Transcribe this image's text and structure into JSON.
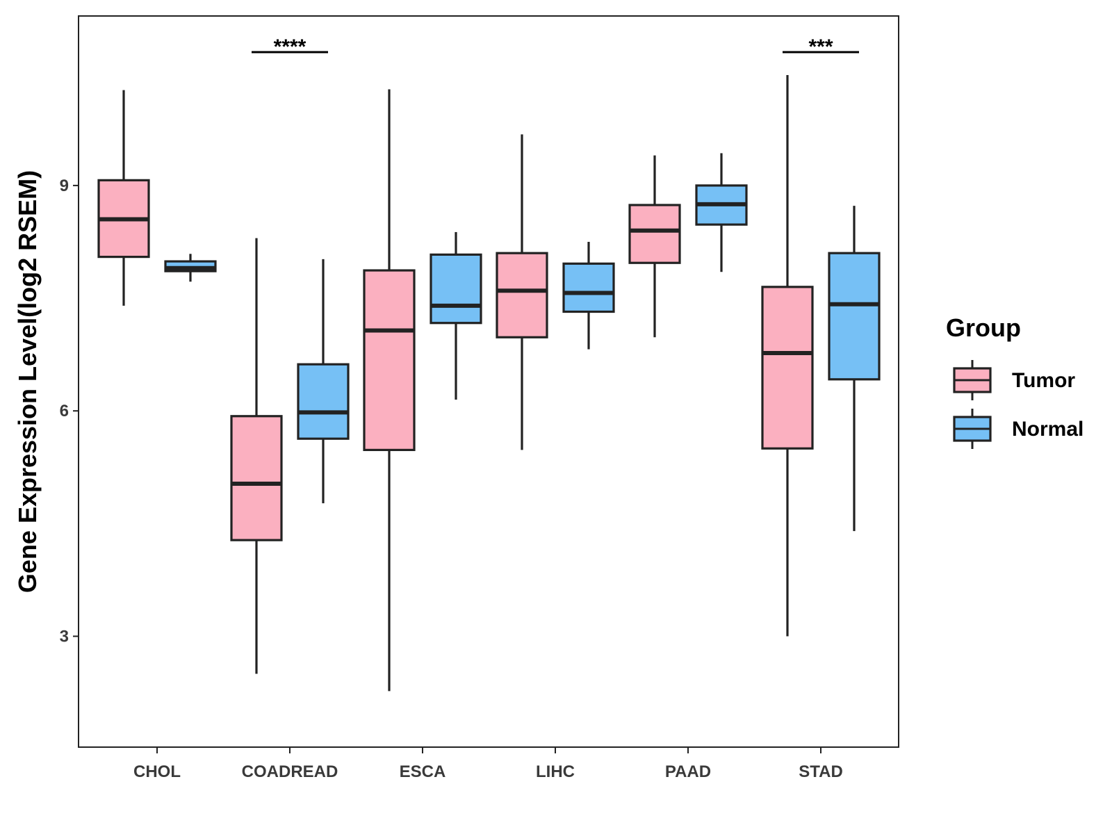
{
  "chart_data": {
    "type": "boxplot",
    "title": "",
    "xlabel": "",
    "ylabel": "Gene Expression Level(log2 RSEM)",
    "ylim": [
      1.5,
      11.25
    ],
    "yticks": [
      3,
      6,
      9
    ],
    "categories": [
      "CHOL",
      "COADREAD",
      "ESCA",
      "LIHC",
      "PAAD",
      "STAD"
    ],
    "legend": {
      "title": "Group",
      "position": "right"
    },
    "series": [
      {
        "name": "Tumor",
        "color": "#FBB0C0",
        "boxes": [
          {
            "category": "CHOL",
            "min": 7.4,
            "q1": 8.05,
            "median": 8.55,
            "q3": 9.07,
            "max": 10.27
          },
          {
            "category": "COADREAD",
            "min": 2.5,
            "q1": 4.28,
            "median": 5.03,
            "q3": 5.93,
            "max": 8.3
          },
          {
            "category": "ESCA",
            "min": 2.27,
            "q1": 5.48,
            "median": 7.07,
            "q3": 7.87,
            "max": 10.28
          },
          {
            "category": "LIHC",
            "min": 5.48,
            "q1": 6.98,
            "median": 7.6,
            "q3": 8.1,
            "max": 9.68
          },
          {
            "category": "PAAD",
            "min": 6.98,
            "q1": 7.97,
            "median": 8.4,
            "q3": 8.74,
            "max": 9.4
          },
          {
            "category": "STAD",
            "min": 3.0,
            "q1": 5.5,
            "median": 6.77,
            "q3": 7.65,
            "max": 10.47
          }
        ]
      },
      {
        "name": "Normal",
        "color": "#76C0F5",
        "boxes": [
          {
            "category": "CHOL",
            "min": 7.72,
            "q1": 7.86,
            "median": 7.9,
            "q3": 7.99,
            "max": 8.09
          },
          {
            "category": "COADREAD",
            "min": 4.77,
            "q1": 5.63,
            "median": 5.98,
            "q3": 6.62,
            "max": 8.02
          },
          {
            "category": "ESCA",
            "min": 6.15,
            "q1": 7.17,
            "median": 7.4,
            "q3": 8.08,
            "max": 8.38
          },
          {
            "category": "LIHC",
            "min": 6.82,
            "q1": 7.32,
            "median": 7.57,
            "q3": 7.96,
            "max": 8.25
          },
          {
            "category": "PAAD",
            "min": 7.85,
            "q1": 8.48,
            "median": 8.75,
            "q3": 9.0,
            "max": 9.43
          },
          {
            "category": "STAD",
            "min": 4.4,
            "q1": 6.42,
            "median": 7.42,
            "q3": 8.1,
            "max": 8.73
          }
        ]
      }
    ],
    "significance": [
      {
        "category": "COADREAD",
        "label": "****"
      },
      {
        "category": "STAD",
        "label": "***"
      }
    ]
  }
}
